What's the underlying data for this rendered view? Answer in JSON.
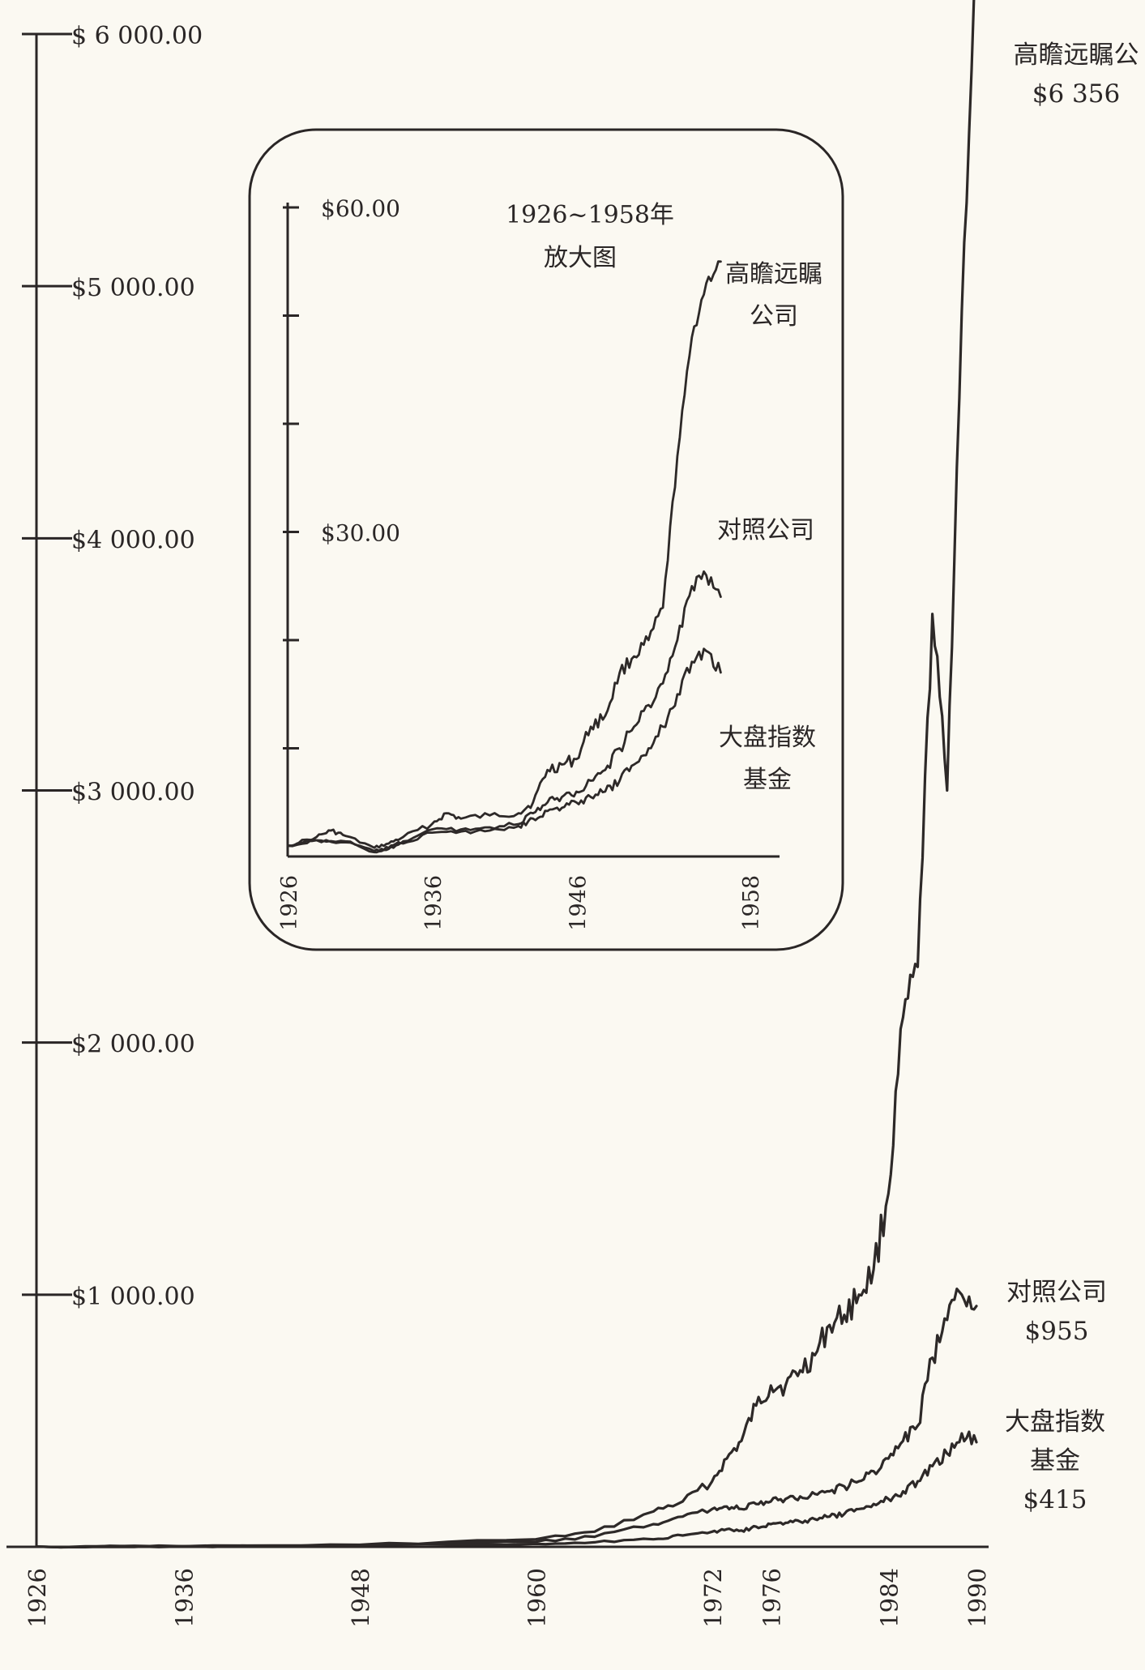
{
  "chart_data": [
    {
      "type": "line",
      "title": "",
      "xlabel": "",
      "ylabel": "",
      "xlim": [
        1926,
        1990
      ],
      "ylim": [
        0,
        6000
      ],
      "x_ticks": [
        1926,
        1936,
        1948,
        1960,
        1972,
        1976,
        1984,
        1990
      ],
      "x_tick_labels": [
        "1926",
        "1936",
        "1948",
        "1960",
        "1972",
        "1976",
        "1984",
        "1990"
      ],
      "y_ticks": [
        1000,
        2000,
        3000,
        4000,
        5000,
        6000
      ],
      "y_tick_labels": [
        "$1 000.00",
        "$2 000.00",
        "$3 000.00",
        "$4 000.00",
        "$5 000.00",
        "$ 6 000.00"
      ],
      "grid": false,
      "series": [
        {
          "name": "高瞻远瞩公",
          "end_label": "$6 356",
          "x": [
            1926,
            1936,
            1948,
            1960,
            1964,
            1968,
            1970,
            1972,
            1973,
            1974,
            1975,
            1976,
            1977,
            1978,
            1979,
            1980,
            1981,
            1982,
            1983,
            1984,
            1985,
            1986,
            1987,
            1988,
            1989,
            1990
          ],
          "values": [
            1,
            2,
            8,
            30,
            60,
            140,
            180,
            260,
            350,
            420,
            560,
            640,
            640,
            700,
            760,
            880,
            920,
            1000,
            1100,
            1400,
            2100,
            2300,
            3700,
            3000,
            4900,
            6356
          ]
        },
        {
          "name": "对照公司",
          "end_label": "$955",
          "x": [
            1926,
            1936,
            1948,
            1960,
            1964,
            1968,
            1970,
            1972,
            1973,
            1974,
            1975,
            1976,
            1977,
            1978,
            1979,
            1980,
            1981,
            1982,
            1983,
            1984,
            1985,
            1986,
            1987,
            1988,
            1989,
            1990
          ],
          "values": [
            1,
            2,
            6,
            20,
            40,
            90,
            120,
            150,
            160,
            150,
            170,
            180,
            190,
            200,
            210,
            220,
            240,
            260,
            300,
            350,
            420,
            480,
            750,
            900,
            1000,
            955
          ]
        },
        {
          "name": "大盘指数基金",
          "end_label": "$415",
          "x": [
            1926,
            1936,
            1948,
            1960,
            1964,
            1968,
            1970,
            1972,
            1973,
            1974,
            1975,
            1976,
            1977,
            1978,
            1979,
            1980,
            1981,
            1982,
            1983,
            1984,
            1985,
            1986,
            1987,
            1988,
            1989,
            1990
          ],
          "values": [
            1,
            2,
            5,
            12,
            18,
            30,
            45,
            60,
            70,
            65,
            80,
            90,
            95,
            100,
            110,
            120,
            130,
            150,
            170,
            190,
            220,
            260,
            320,
            370,
            450,
            415
          ]
        }
      ],
      "series_labels": [
        {
          "lines": [
            "高瞻远瞩公",
            "$6 356"
          ]
        },
        {
          "lines": [
            "对照公司",
            "$955"
          ]
        },
        {
          "lines": [
            "大盘指数",
            "基金",
            "$415"
          ]
        }
      ]
    },
    {
      "type": "line",
      "title": "1926~1958年",
      "subtitle": "放大图",
      "xlabel": "",
      "ylabel": "",
      "xlim": [
        1926,
        1958
      ],
      "ylim": [
        0,
        60
      ],
      "x_ticks": [
        1926,
        1936,
        1946,
        1958
      ],
      "x_tick_labels": [
        "1926",
        "1936",
        "1946",
        "1958"
      ],
      "y_ticks": [
        10,
        20,
        30,
        40,
        50,
        60
      ],
      "y_tick_labels": [
        "",
        "",
        "$30.00",
        "",
        "",
        "$60.00"
      ],
      "grid": false,
      "series": [
        {
          "name": "高瞻远瞩公司",
          "x": [
            1926,
            1928,
            1929,
            1930,
            1932,
            1933,
            1934,
            1936,
            1937,
            1938,
            1940,
            1942,
            1943,
            1944,
            1945,
            1946,
            1947,
            1948,
            1949,
            1950,
            1951,
            1952,
            1953,
            1954,
            1955,
            1956
          ],
          "values": [
            1,
            1.8,
            2.4,
            1.9,
            0.8,
            1.2,
            1.8,
            3,
            4,
            3.5,
            3.8,
            4,
            5,
            8,
            8.5,
            9,
            12,
            13,
            17,
            18.5,
            20,
            23,
            37,
            48,
            53,
            55
          ]
        },
        {
          "name": "对照公司",
          "x": [
            1926,
            1928,
            1930,
            1932,
            1933,
            1934,
            1936,
            1938,
            1940,
            1942,
            1943,
            1944,
            1945,
            1946,
            1947,
            1948,
            1949,
            1950,
            1951,
            1952,
            1953,
            1954,
            1955,
            1956
          ],
          "values": [
            1,
            1.5,
            1.4,
            0.5,
            0.8,
            1.4,
            2.5,
            2.5,
            2.7,
            3,
            4,
            5,
            5.5,
            6,
            7,
            8,
            10,
            12,
            14,
            16,
            20,
            25,
            26,
            24
          ]
        },
        {
          "name": "大盘指数基金",
          "x": [
            1926,
            1928,
            1930,
            1932,
            1933,
            1934,
            1936,
            1938,
            1940,
            1942,
            1943,
            1944,
            1945,
            1946,
            1947,
            1948,
            1949,
            1950,
            1951,
            1952,
            1953,
            1954,
            1955,
            1956
          ],
          "values": [
            1,
            1.5,
            1.3,
            0.4,
            0.7,
            1.2,
            2.2,
            2.3,
            2.4,
            2.8,
            3.5,
            4.2,
            4.5,
            5,
            5.5,
            6,
            7,
            8.5,
            10,
            12,
            15,
            18,
            19,
            17
          ]
        }
      ],
      "series_labels": [
        {
          "lines": [
            "高瞻远瞩",
            "公司"
          ]
        },
        {
          "lines": [
            "对照公司"
          ]
        },
        {
          "lines": [
            "大盘指数",
            "基金"
          ]
        }
      ]
    }
  ]
}
